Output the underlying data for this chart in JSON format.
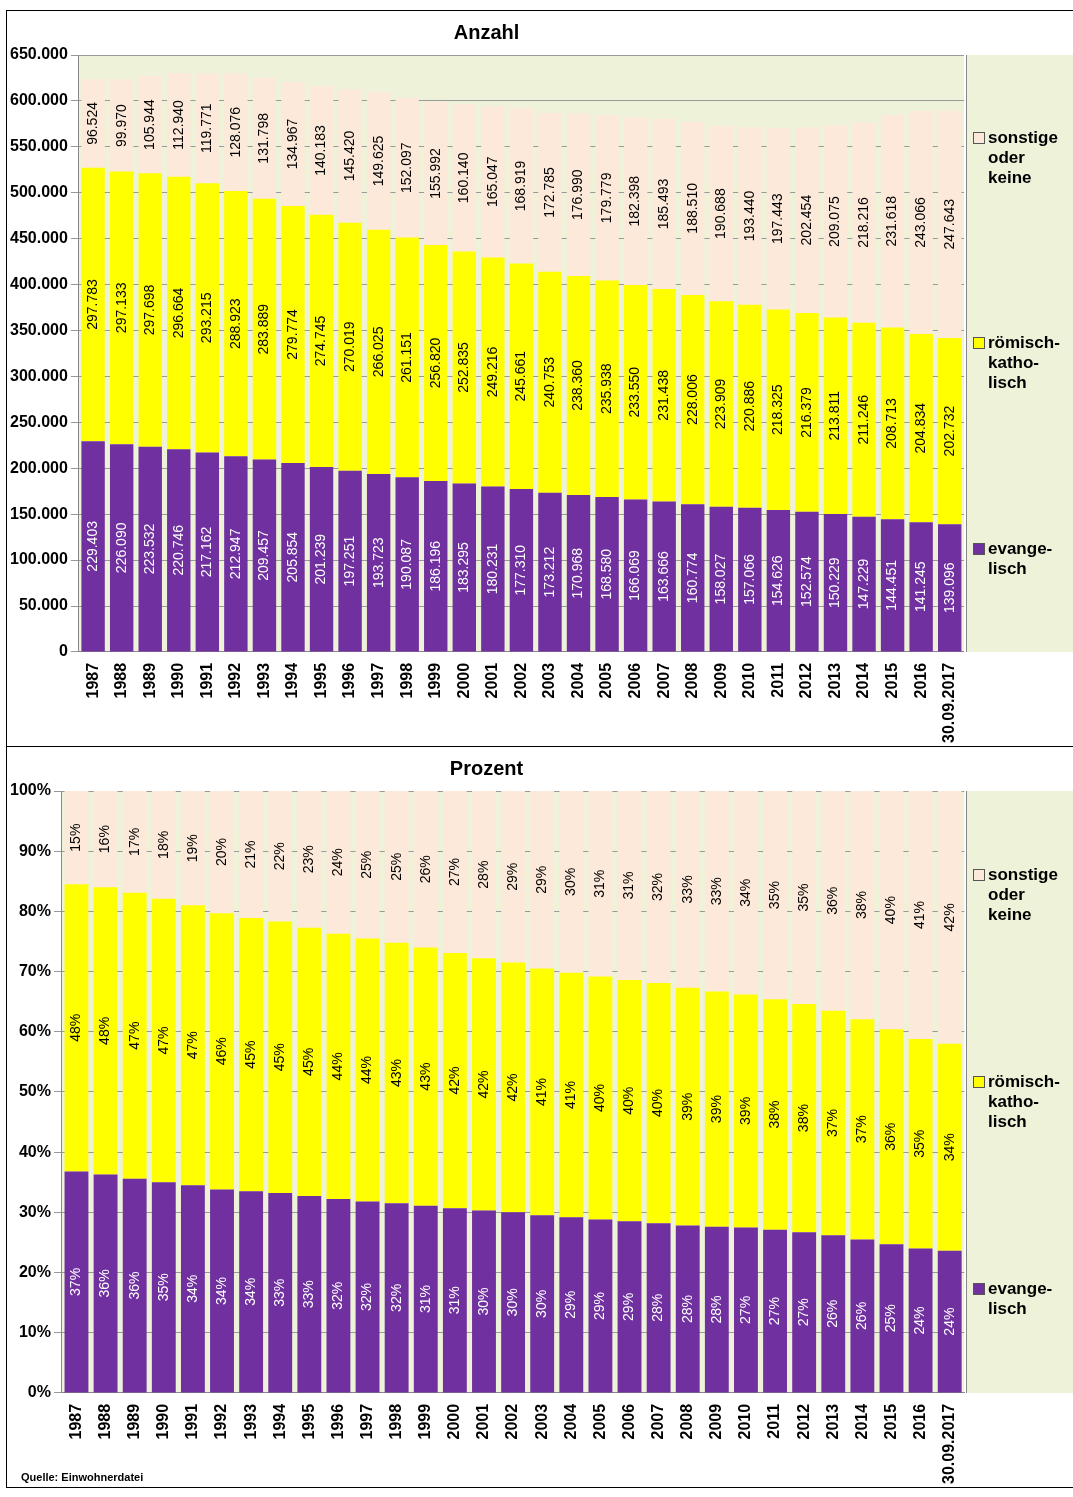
{
  "chart_data": [
    {
      "type": "bar",
      "title": "Anzahl",
      "stacked": true,
      "grid": "y",
      "legend": "right",
      "categories": [
        "1987",
        "1988",
        "1989",
        "1990",
        "1991",
        "1992",
        "1993",
        "1994",
        "1995",
        "1996",
        "1997",
        "1998",
        "1999",
        "2000",
        "2001",
        "2002",
        "2003",
        "2004",
        "2005",
        "2006",
        "2007",
        "2008",
        "2009",
        "2010",
        "2011",
        "2012",
        "2013",
        "2014",
        "2015",
        "2016",
        "30.09.2017"
      ],
      "series": [
        {
          "name": "evange-lisch",
          "color": "#7030a0",
          "values": [
            229403,
            226090,
            223532,
            220746,
            217162,
            212947,
            209457,
            205854,
            201239,
            197251,
            193723,
            190087,
            186196,
            183295,
            180231,
            177310,
            173212,
            170968,
            168580,
            166069,
            163666,
            160774,
            158027,
            157066,
            154626,
            152574,
            150229,
            147229,
            144451,
            141245,
            139096
          ],
          "value_labels": [
            "229.403",
            "226.090",
            "223.532",
            "220.746",
            "217.162",
            "212.947",
            "209.457",
            "205.854",
            "201.239",
            "197.251",
            "193.723",
            "190.087",
            "186.196",
            "183.295",
            "180.231",
            "177.310",
            "173.212",
            "170.968",
            "168.580",
            "166.069",
            "163.666",
            "160.774",
            "158.027",
            "157.066",
            "154.626",
            "152.574",
            "150.229",
            "147.229",
            "144.451",
            "141.245",
            "139.096"
          ]
        },
        {
          "name": "römisch-katho-lisch",
          "color": "#ffff00",
          "values": [
            297783,
            297133,
            297698,
            296664,
            293215,
            288923,
            283889,
            279774,
            274745,
            270019,
            266025,
            261151,
            256820,
            252835,
            249216,
            245661,
            240753,
            238360,
            235938,
            233550,
            231438,
            228006,
            223909,
            220886,
            218325,
            216379,
            213811,
            211246,
            208713,
            204834,
            202732
          ],
          "value_labels": [
            "297.783",
            "297.133",
            "297.698",
            "296.664",
            "293.215",
            "288.923",
            "283.889",
            "279.774",
            "274.745",
            "270.019",
            "266.025",
            "261.151",
            "256.820",
            "252.835",
            "249.216",
            "245.661",
            "240.753",
            "238.360",
            "235.938",
            "233.550",
            "231.438",
            "228.006",
            "223.909",
            "220.886",
            "218.325",
            "216.379",
            "213.811",
            "211.246",
            "208.713",
            "204.834",
            "202.732"
          ]
        },
        {
          "name": "sonstige oder keine",
          "color": "#fde9d9",
          "values": [
            96524,
            99970,
            105944,
            112940,
            119771,
            128076,
            131798,
            134967,
            140183,
            145420,
            149625,
            152097,
            155992,
            160140,
            165047,
            168919,
            172785,
            176990,
            179779,
            182398,
            185493,
            188510,
            190688,
            193440,
            197443,
            202454,
            209075,
            218216,
            231618,
            243066,
            247643
          ],
          "value_labels": [
            "96.524",
            "99.970",
            "105.944",
            "112.940",
            "119.771",
            "128.076",
            "131.798",
            "134.967",
            "140.183",
            "145.420",
            "149.625",
            "152.097",
            "155.992",
            "160.140",
            "165.047",
            "168.919",
            "172.785",
            "176.990",
            "179.779",
            "182.398",
            "185.493",
            "188.510",
            "190.688",
            "193.440",
            "197.443",
            "202.454",
            "209.075",
            "218.216",
            "231.618",
            "243.066",
            "247.643"
          ]
        }
      ],
      "ylim": [
        0,
        650000
      ],
      "yticks": [
        {
          "value": 0,
          "label": "0"
        },
        {
          "value": 50000,
          "label": "50.000"
        },
        {
          "value": 100000,
          "label": "100.000"
        },
        {
          "value": 150000,
          "label": "150.000"
        },
        {
          "value": 200000,
          "label": "200.000"
        },
        {
          "value": 250000,
          "label": "250.000"
        },
        {
          "value": 300000,
          "label": "300.000"
        },
        {
          "value": 350000,
          "label": "350.000"
        },
        {
          "value": 400000,
          "label": "400.000"
        },
        {
          "value": 450000,
          "label": "450.000"
        },
        {
          "value": 500000,
          "label": "500.000"
        },
        {
          "value": 550000,
          "label": "550.000"
        },
        {
          "value": 600000,
          "label": "600.000"
        },
        {
          "value": 650000,
          "label": "650.000"
        }
      ]
    },
    {
      "type": "bar",
      "title": "Prozent",
      "stacked": true,
      "grid": "y",
      "legend": "right",
      "annotations": [
        "Quelle: Einwohnerdatei"
      ],
      "categories": [
        "1987",
        "1988",
        "1989",
        "1990",
        "1991",
        "1992",
        "1993",
        "1994",
        "1995",
        "1996",
        "1997",
        "1998",
        "1999",
        "2000",
        "2001",
        "2002",
        "2003",
        "2004",
        "2005",
        "2006",
        "2007",
        "2008",
        "2009",
        "2010",
        "2011",
        "2012",
        "2013",
        "2014",
        "2015",
        "2016",
        "30.09.2017"
      ],
      "series": [
        {
          "name": "evange-lisch",
          "color": "#7030a0",
          "values": [
            36.8,
            36.3,
            35.6,
            35.0,
            34.5,
            33.8,
            33.5,
            33.2,
            32.7,
            32.2,
            31.8,
            31.5,
            31.1,
            30.7,
            30.3,
            30.0,
            29.5,
            29.2,
            28.8,
            28.5,
            28.2,
            27.8,
            27.6,
            27.5,
            27.1,
            26.7,
            26.2,
            25.5,
            24.7,
            24.0,
            23.6
          ],
          "value_labels": [
            "37%",
            "36%",
            "36%",
            "35%",
            "34%",
            "34%",
            "34%",
            "33%",
            "33%",
            "32%",
            "32%",
            "32%",
            "31%",
            "31%",
            "30%",
            "30%",
            "30%",
            "29%",
            "29%",
            "29%",
            "28%",
            "28%",
            "28%",
            "27%",
            "27%",
            "27%",
            "26%",
            "26%",
            "25%",
            "24%",
            "24%"
          ]
        },
        {
          "name": "römisch-katho-lisch",
          "color": "#ffff00",
          "values": [
            47.7,
            47.7,
            47.5,
            47.1,
            46.5,
            45.9,
            45.4,
            45.1,
            44.6,
            44.1,
            43.7,
            43.3,
            42.9,
            42.4,
            41.9,
            41.5,
            41.0,
            40.6,
            40.4,
            40.1,
            39.9,
            39.5,
            39.1,
            38.7,
            38.3,
            37.9,
            37.3,
            36.6,
            35.7,
            34.8,
            34.4
          ],
          "value_labels": [
            "48%",
            "48%",
            "47%",
            "47%",
            "47%",
            "46%",
            "45%",
            "45%",
            "45%",
            "44%",
            "44%",
            "43%",
            "43%",
            "42%",
            "42%",
            "42%",
            "41%",
            "41%",
            "40%",
            "40%",
            "40%",
            "39%",
            "39%",
            "39%",
            "38%",
            "38%",
            "37%",
            "37%",
            "36%",
            "35%",
            "34%"
          ]
        },
        {
          "name": "sonstige oder keine",
          "color": "#fde9d9",
          "values": [
            15.5,
            16.0,
            16.9,
            17.9,
            19.0,
            20.3,
            21.1,
            21.7,
            22.7,
            23.7,
            24.5,
            25.2,
            26.0,
            26.9,
            27.8,
            28.5,
            29.5,
            30.2,
            30.8,
            31.4,
            31.9,
            32.7,
            33.3,
            33.8,
            34.6,
            35.4,
            36.5,
            37.9,
            39.6,
            41.2,
            42.0
          ],
          "value_labels": [
            "15%",
            "16%",
            "17%",
            "18%",
            "19%",
            "20%",
            "21%",
            "22%",
            "23%",
            "24%",
            "25%",
            "25%",
            "26%",
            "27%",
            "28%",
            "29%",
            "29%",
            "30%",
            "31%",
            "31%",
            "32%",
            "33%",
            "33%",
            "34%",
            "35%",
            "35%",
            "36%",
            "38%",
            "40%",
            "41%",
            "42%"
          ]
        }
      ],
      "ylim": [
        0,
        100
      ],
      "yticks": [
        {
          "value": 0,
          "label": "0%"
        },
        {
          "value": 10,
          "label": "10%"
        },
        {
          "value": 20,
          "label": "20%"
        },
        {
          "value": 30,
          "label": "30%"
        },
        {
          "value": 40,
          "label": "40%"
        },
        {
          "value": 50,
          "label": "50%"
        },
        {
          "value": 60,
          "label": "60%"
        },
        {
          "value": 70,
          "label": "70%"
        },
        {
          "value": 80,
          "label": "80%"
        },
        {
          "value": 90,
          "label": "90%"
        },
        {
          "value": 100,
          "label": "100%"
        }
      ]
    }
  ]
}
